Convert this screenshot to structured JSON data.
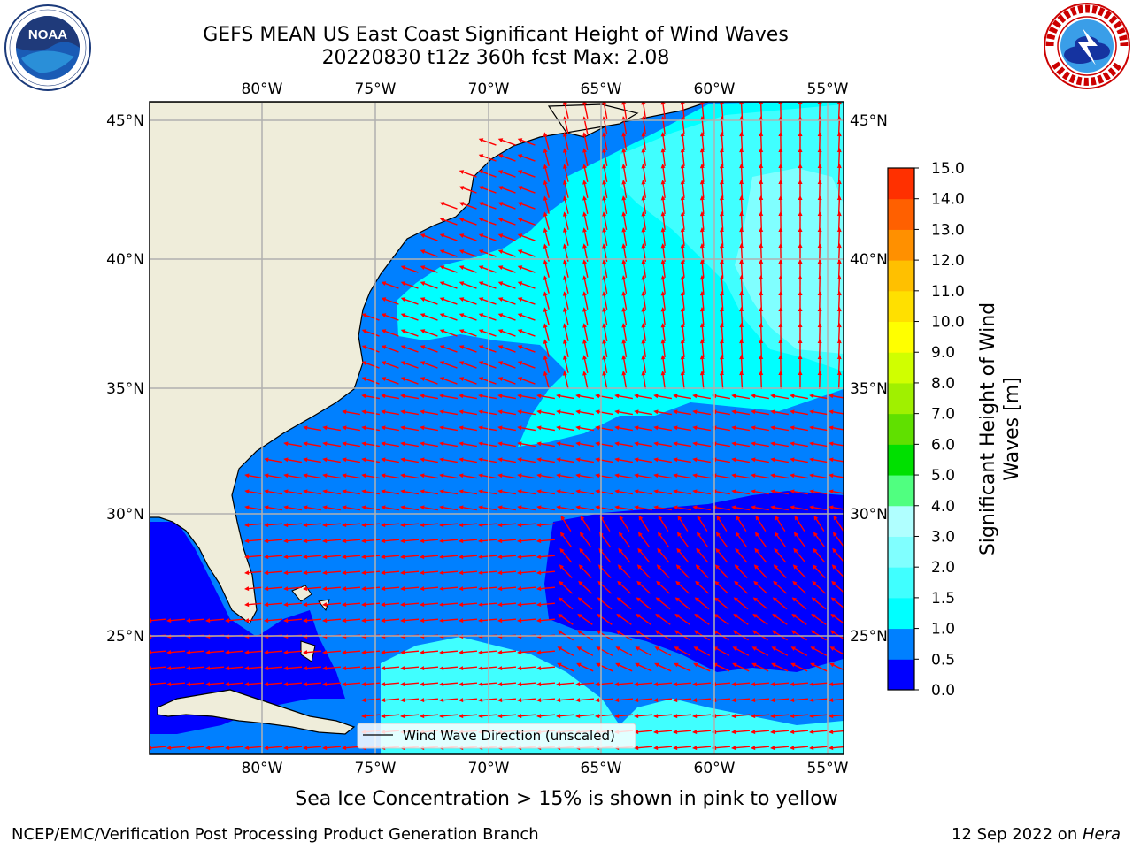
{
  "title": {
    "line1": "GEFS MEAN US East Coast Significant Height of Wind Waves",
    "line2": "20220830 t12z 360h fcst   Max: 2.08"
  },
  "map": {
    "lon_labels": [
      "80°W",
      "75°W",
      "70°W",
      "65°W",
      "60°W",
      "55°W"
    ],
    "lat_labels": [
      "45°N",
      "40°N",
      "35°N",
      "30°N",
      "25°N"
    ],
    "legend_label": "Wind Wave Direction (unscaled)",
    "arrow_color": "#ff0000",
    "land_color": "#efedda",
    "coast_color": "#000000"
  },
  "colorbar": {
    "label_line1": "Significant Height of Wind",
    "label_line2": "Waves [m]",
    "ticks": [
      "0.0",
      "0.5",
      "1.0",
      "1.5",
      "2.0",
      "3.0",
      "4.0",
      "5.0",
      "6.0",
      "7.0",
      "8.0",
      "9.0",
      "10.0",
      "11.0",
      "12.0",
      "13.0",
      "14.0",
      "15.0"
    ],
    "colors": [
      "#0000ff",
      "#0080ff",
      "#00ffff",
      "#40ffff",
      "#80ffff",
      "#b0ffff",
      "#50ff80",
      "#00e000",
      "#60e000",
      "#a0f000",
      "#d0ff00",
      "#ffff00",
      "#ffe000",
      "#ffc000",
      "#ff9000",
      "#ff6000",
      "#ff3000"
    ]
  },
  "footer": {
    "note": "Sea Ice Concentration > 15% is shown in pink to yellow",
    "credit": "NCEP/EMC/Verification Post Processing Product Generation Branch",
    "date": "12 Sep 2022 on ",
    "system": "Hera"
  },
  "logos": {
    "noaa_text": "NOAA",
    "noaa_ring_top": "NATIONAL OCEANIC AND ATMOSPHERIC ADMINISTRATION",
    "noaa_ring_bottom": "U.S. DEPARTMENT OF COMMERCE",
    "nws_ring": "NATIONAL WEATHER SERVICE"
  }
}
